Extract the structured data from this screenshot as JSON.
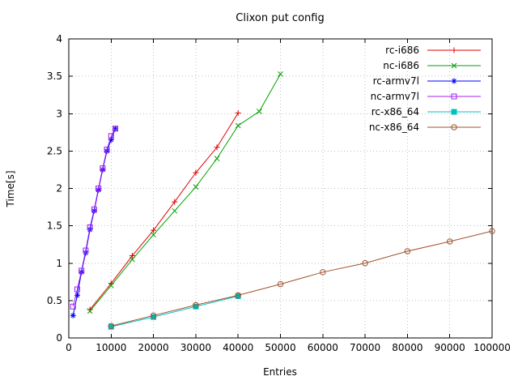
{
  "chart_data": {
    "type": "line",
    "title": "Clixon put config",
    "xlabel": "Entries",
    "ylabel": "Time[s]",
    "xlim": [
      0,
      100000
    ],
    "ylim": [
      0,
      4
    ],
    "grid": true,
    "legend_position": "top-right-inside",
    "xticks": [
      0,
      10000,
      20000,
      30000,
      40000,
      50000,
      60000,
      70000,
      80000,
      90000,
      100000
    ],
    "xtick_labels": [
      "0",
      "10000",
      "20000",
      "30000",
      "40000",
      "50000",
      "60000",
      "70000",
      "80000",
      "90000",
      "100000"
    ],
    "yticks": [
      0,
      0.5,
      1,
      1.5,
      2,
      2.5,
      3,
      3.5,
      4
    ],
    "ytick_labels": [
      "0",
      "0.5",
      "1",
      "1.5",
      "2",
      "2.5",
      "3",
      "3.5",
      "4"
    ],
    "series": [
      {
        "name": "rc-i686",
        "color": "#e00000",
        "marker": "plus",
        "x": [
          5000,
          10000,
          15000,
          20000,
          25000,
          30000,
          35000,
          40000
        ],
        "y": [
          0.38,
          0.73,
          1.1,
          1.44,
          1.82,
          2.21,
          2.55,
          3.01
        ]
      },
      {
        "name": "nc-i686",
        "color": "#00a000",
        "marker": "cross",
        "x": [
          5000,
          10000,
          15000,
          20000,
          25000,
          30000,
          35000,
          40000,
          45000,
          50000
        ],
        "y": [
          0.36,
          0.7,
          1.05,
          1.38,
          1.7,
          2.02,
          2.4,
          2.84,
          3.03,
          3.53
        ]
      },
      {
        "name": "rc-armv7l",
        "color": "#0000ff",
        "marker": "asterisk",
        "x": [
          1000,
          2000,
          3000,
          4000,
          5000,
          6000,
          7000,
          8000,
          9000,
          10000,
          11000
        ],
        "y": [
          0.3,
          0.57,
          0.88,
          1.14,
          1.45,
          1.7,
          1.98,
          2.25,
          2.5,
          2.65,
          2.8
        ]
      },
      {
        "name": "nc-armv7l",
        "color": "#a020f0",
        "marker": "square-open",
        "x": [
          1000,
          2000,
          3000,
          4000,
          5000,
          6000,
          7000,
          8000,
          9000,
          10000,
          11000
        ],
        "y": [
          0.42,
          0.65,
          0.9,
          1.17,
          1.48,
          1.72,
          2.0,
          2.27,
          2.52,
          2.7,
          2.8
        ]
      },
      {
        "name": "rc-x86_64",
        "color": "#00c0c0",
        "marker": "square-filled",
        "x": [
          10000,
          20000,
          30000,
          40000
        ],
        "y": [
          0.15,
          0.28,
          0.42,
          0.56
        ]
      },
      {
        "name": "nc-x86_64",
        "color": "#a0522d",
        "marker": "circle-open",
        "x": [
          10000,
          20000,
          30000,
          40000,
          50000,
          60000,
          70000,
          80000,
          90000,
          100000
        ],
        "y": [
          0.16,
          0.3,
          0.44,
          0.57,
          0.72,
          0.88,
          1.0,
          1.16,
          1.29,
          1.43
        ]
      }
    ]
  }
}
